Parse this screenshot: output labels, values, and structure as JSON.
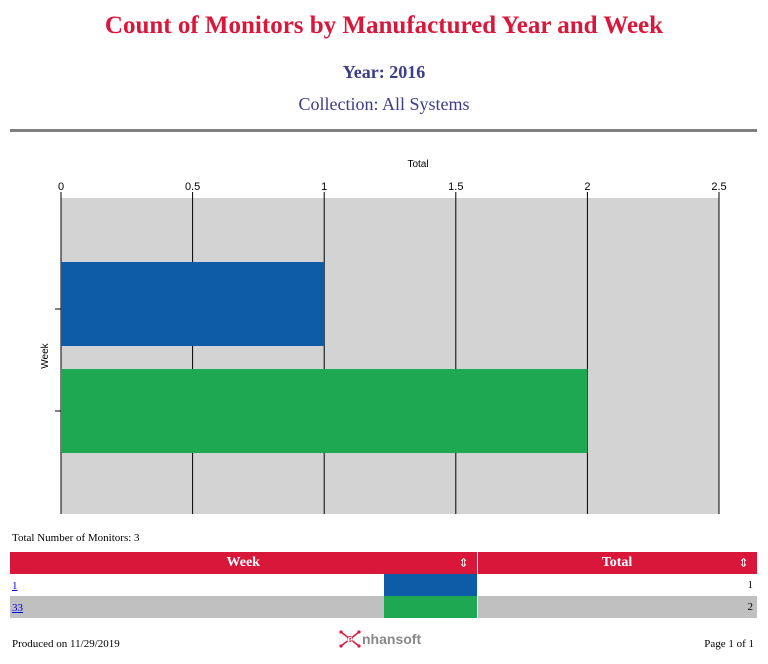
{
  "header": {
    "title": "Count of Monitors by Manufactured Year and Week",
    "year_line": "Year: 2016",
    "collection_line": "Collection: All Systems"
  },
  "chart_data": {
    "type": "bar",
    "orientation": "horizontal",
    "categories": [
      "1",
      "33"
    ],
    "values": [
      1,
      2
    ],
    "colors": [
      "#0e5ca8",
      "#1ea852"
    ],
    "xlabel": "Total",
    "ylabel": "Week",
    "xlim": [
      0,
      2.5
    ],
    "xticks": [
      "0",
      "0.5",
      "1",
      "1.5",
      "2",
      "2.5"
    ],
    "grid": true,
    "plot_background": "#d3d3d3"
  },
  "summary": {
    "total_label": "Total Number of Monitors: 3"
  },
  "table": {
    "columns": [
      "Week",
      "Total"
    ],
    "sort_icon": "sort-icon",
    "rows": [
      {
        "week": "1",
        "total": "1",
        "color": "#0e5ca8"
      },
      {
        "week": "33",
        "total": "2",
        "color": "#1ea852"
      }
    ]
  },
  "footer": {
    "produced": "Produced on 11/29/2019",
    "logo_text": "nhansoft",
    "logo_letter": "e",
    "page": "Page 1 of 1"
  },
  "accent_color": "#d8173a"
}
